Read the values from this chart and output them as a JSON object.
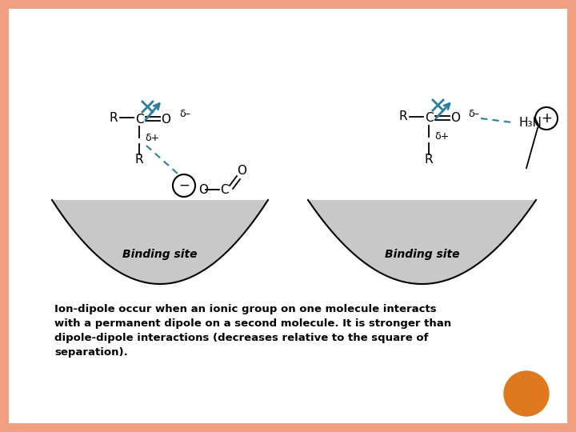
{
  "bg_color": "#ffffff",
  "border_color": "#f0a080",
  "teal": "#2a7fa0",
  "panel_bg": "#c8c8c8",
  "text_color": "#000000",
  "description_line1": "Ion-dipole occur when an ionic group on one molecule interacts",
  "description_line2": "with a permanent dipole on a second molecule. It is stronger than",
  "description_line3": "dipole-dipole interactions (decreases relative to the square of",
  "description_line4": "separation).",
  "binding_site_label": "Binding site",
  "orange_circle_color": "#e07820"
}
